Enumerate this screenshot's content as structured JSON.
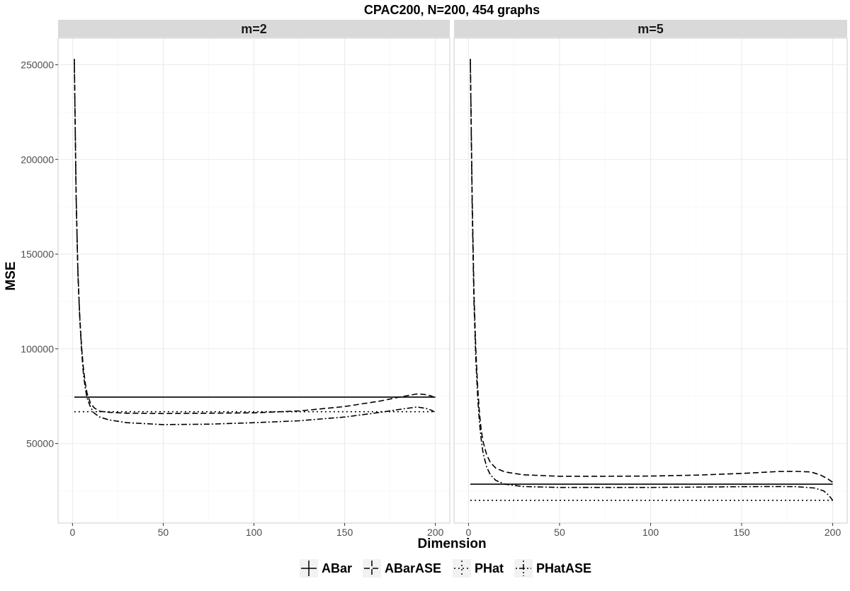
{
  "chart_data": {
    "type": "line",
    "title": "CPAC200, N=200, 454 graphs",
    "xlabel": "Dimension",
    "ylabel": "MSE",
    "xlim": [
      -7.95,
      207.95
    ],
    "ylim": [
      8000,
      264000
    ],
    "x_ticks": [
      0,
      50,
      100,
      150,
      200
    ],
    "x_tick_labels": [
      "0",
      "50",
      "100",
      "150",
      "200"
    ],
    "y_ticks": [
      50000,
      100000,
      150000,
      200000,
      250000
    ],
    "y_tick_labels": [
      "50000",
      "100000",
      "150000",
      "200000",
      "250000"
    ],
    "grid": true,
    "legend_position": "bottom",
    "legend": [
      {
        "key": "ABar",
        "label": "ABar",
        "dash": "solid"
      },
      {
        "key": "ABarASE",
        "label": "ABarASE",
        "dash": "dashed"
      },
      {
        "key": "PHat",
        "label": "PHat",
        "dash": "dotted"
      },
      {
        "key": "PHatASE",
        "label": "PHatASE",
        "dash": "dotdash"
      }
    ],
    "panels": [
      {
        "label": "m=2",
        "series": [
          {
            "key": "ABar",
            "x": [
              1,
              200
            ],
            "y": [
              74500,
              74500
            ]
          },
          {
            "key": "ABarASE",
            "x": [
              1,
              2,
              3,
              4,
              5,
              6,
              7,
              8,
              10,
              12,
              15,
              20,
              30,
              50,
              75,
              100,
              125,
              150,
              170,
              180,
              190,
              195,
              198,
              200
            ],
            "y": [
              253000,
              180000,
              140000,
              117000,
              101000,
              90000,
              82000,
              76500,
              71000,
              68800,
              67000,
              66500,
              66000,
              65800,
              66000,
              66200,
              67200,
              69500,
              72500,
              74500,
              76200,
              75800,
              75000,
              74000
            ]
          },
          {
            "key": "PHat",
            "x": [
              1,
              200
            ],
            "y": [
              66800,
              66800
            ]
          },
          {
            "key": "PHatASE",
            "x": [
              1,
              2,
              3,
              4,
              5,
              6,
              7,
              8,
              10,
              12,
              15,
              20,
              30,
              50,
              75,
              100,
              125,
              150,
              170,
              180,
              190,
              195,
              198,
              200
            ],
            "y": [
              253000,
              180000,
              140000,
              116000,
              99000,
              87000,
              79500,
              74000,
              69000,
              66000,
              64000,
              62500,
              61000,
              60000,
              60200,
              61000,
              62000,
              64000,
              66500,
              68000,
              69300,
              68500,
              67500,
              66500
            ]
          }
        ]
      },
      {
        "label": "m=5",
        "series": [
          {
            "key": "ABar",
            "x": [
              1,
              200
            ],
            "y": [
              28500,
              28500
            ]
          },
          {
            "key": "ABarASE",
            "x": [
              1,
              2,
              3,
              4,
              5,
              6,
              7,
              8,
              10,
              12,
              15,
              20,
              30,
              50,
              75,
              100,
              125,
              150,
              170,
              180,
              188,
              193,
              197,
              200
            ],
            "y": [
              253000,
              180000,
              130000,
              100000,
              80000,
              66000,
              57000,
              51000,
              44000,
              40000,
              37000,
              35000,
              33500,
              32700,
              32700,
              32800,
              33300,
              34200,
              35200,
              35300,
              35000,
              33500,
              31500,
              29500
            ]
          },
          {
            "key": "PHat",
            "x": [
              1,
              200
            ],
            "y": [
              20000,
              20000
            ]
          },
          {
            "key": "PHatASE",
            "x": [
              1,
              2,
              3,
              4,
              5,
              6,
              7,
              8,
              10,
              12,
              15,
              20,
              30,
              50,
              75,
              100,
              125,
              150,
              170,
              180,
              190,
              195,
              198,
              200
            ],
            "y": [
              253000,
              175000,
              125000,
              95000,
              75000,
              61000,
              52000,
              45000,
              37500,
              33500,
              30500,
              28500,
              27300,
              26800,
              26800,
              26800,
              27000,
              27200,
              27300,
              27200,
              26500,
              25000,
              22500,
              20000
            ]
          }
        ]
      }
    ]
  }
}
